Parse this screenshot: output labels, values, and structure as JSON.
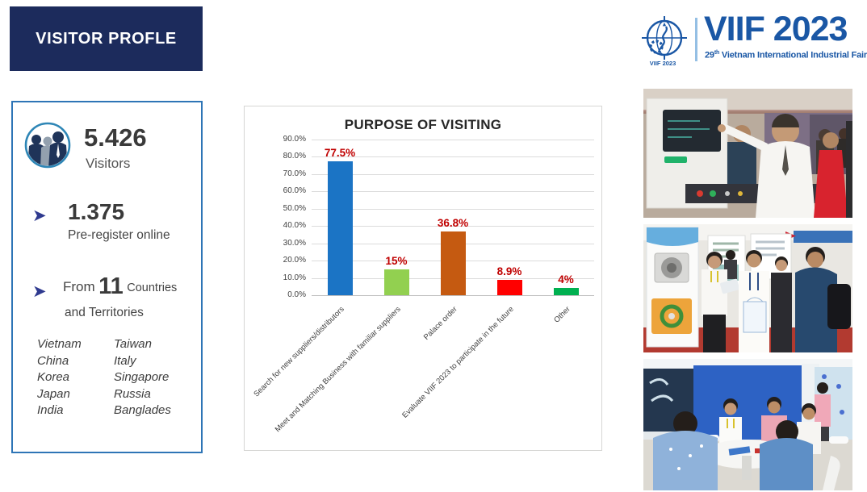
{
  "header": {
    "title": "VISITOR PROFLE"
  },
  "logo": {
    "badge_text": "VIIF 2023",
    "title": "VIIF 2023",
    "edition": "29",
    "edition_suffix": "th",
    "subtitle": " Vietnam International Industrial Fair",
    "brand_color": "#1a57a5",
    "icon": "globe-gear-star"
  },
  "stats": {
    "visitors_count": "5.426",
    "visitors_label": "Visitors",
    "visitors_icon": "people-group",
    "bullet_icon": "arrow-right",
    "bullet_glyph": "➤",
    "preregister_count": "1.375",
    "preregister_label": "Pre-register online",
    "from_label": "From",
    "countries_count": "11",
    "countries_word": "Countries",
    "territories_line": "and Territories",
    "countries_col1": [
      "Vietnam",
      "China",
      "Korea",
      "Japan",
      "India"
    ],
    "countries_col2": [
      "Taiwan",
      "Italy",
      "Singapore",
      "Russia",
      "Banglades"
    ]
  },
  "chart_data": {
    "type": "bar",
    "title": "PURPOSE OF VISITING",
    "categories": [
      "Search for new suppliers/distributors",
      "Meet and Matching Business with familiar suppliers",
      "Palace order",
      "Evaluate VIIF 2023 to participate in the future",
      "Other"
    ],
    "values": [
      77.5,
      15,
      36.8,
      8.9,
      4
    ],
    "value_labels": [
      "77.5%",
      "15%",
      "36.8%",
      "8.9%",
      "4%"
    ],
    "bar_colors": [
      "#1b74c5",
      "#92d050",
      "#c55a11",
      "#ff0000",
      "#00b050"
    ],
    "label_color": "#c00000",
    "xlabel": "",
    "ylabel": "",
    "ylim": [
      0,
      90
    ],
    "yticks": [
      "90.0%",
      "80.0%",
      "70.0%",
      "60.0%",
      "50.0%",
      "40.0%",
      "30.0%",
      "20.0%",
      "10.0%",
      "0.0%"
    ],
    "grid": true,
    "legend": false
  },
  "photos": [
    {
      "name": "machine-demonstration-photo"
    },
    {
      "name": "booth-discussion-photo"
    },
    {
      "name": "meeting-table-photo"
    }
  ],
  "colors": {
    "header_navy": "#1c2b5c",
    "panel_border_blue": "#2e75b6",
    "bullet_indigo": "#2f3a8f",
    "brand_blue": "#1a57a5"
  }
}
